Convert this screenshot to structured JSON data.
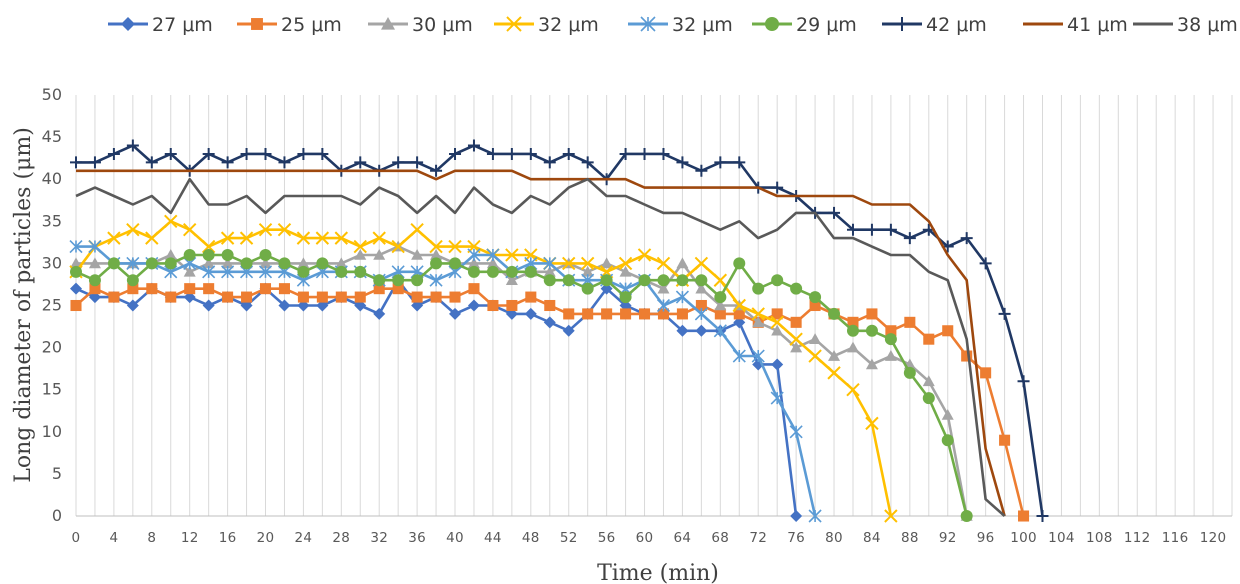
{
  "chart_data": {
    "type": "line",
    "xlabel": "Time (min)",
    "ylabel": "Long  diameter of particles (μm)",
    "ylim": [
      0,
      50
    ],
    "y_ticks": [
      0,
      5,
      10,
      15,
      20,
      25,
      30,
      35,
      40,
      45,
      50
    ],
    "x_ticks": [
      0,
      4,
      8,
      12,
      16,
      20,
      24,
      28,
      32,
      36,
      40,
      44,
      48,
      52,
      56,
      60,
      64,
      68,
      72,
      76,
      80,
      84,
      88,
      92,
      96,
      100,
      104,
      108,
      112,
      116,
      120
    ],
    "x_tick_labels": [
      "0",
      "4",
      "8",
      "12",
      "16",
      "20",
      "24",
      "28",
      "32",
      "36",
      "40",
      "44",
      "48",
      "52",
      "56",
      "60",
      "64",
      "68",
      "72",
      "76",
      "80",
      "84",
      "88",
      "92",
      "96",
      "100",
      "104",
      "108",
      "112",
      "116",
      "120"
    ],
    "xlim": [
      0,
      122
    ],
    "grid": "vertical",
    "legend_position": "top",
    "series": [
      {
        "name": "27 μm",
        "color": "#4472C4",
        "marker": "diamond",
        "x": [
          0,
          2,
          4,
          6,
          8,
          10,
          12,
          14,
          16,
          18,
          20,
          22,
          24,
          26,
          28,
          30,
          32,
          34,
          36,
          38,
          40,
          42,
          44,
          46,
          48,
          50,
          52,
          54,
          56,
          58,
          60,
          62,
          64,
          66,
          68,
          70,
          72,
          74,
          76
        ],
        "y": [
          27,
          26,
          26,
          25,
          27,
          26,
          26,
          25,
          26,
          25,
          27,
          25,
          25,
          25,
          26,
          25,
          24,
          28,
          25,
          26,
          24,
          25,
          25,
          24,
          24,
          23,
          22,
          24,
          27,
          25,
          24,
          24,
          22,
          22,
          22,
          23,
          18,
          18,
          0
        ]
      },
      {
        "name": "25 μm",
        "color": "#ED7D31",
        "marker": "square",
        "x": [
          0,
          2,
          4,
          6,
          8,
          10,
          12,
          14,
          16,
          18,
          20,
          22,
          24,
          26,
          28,
          30,
          32,
          34,
          36,
          38,
          40,
          42,
          44,
          46,
          48,
          50,
          52,
          54,
          56,
          58,
          60,
          62,
          64,
          66,
          68,
          70,
          72,
          74,
          76,
          78,
          80,
          82,
          84,
          86,
          88,
          90,
          92,
          94,
          96,
          98,
          100
        ],
        "y": [
          25,
          27,
          26,
          27,
          27,
          26,
          27,
          27,
          26,
          26,
          27,
          27,
          26,
          26,
          26,
          26,
          27,
          27,
          26,
          26,
          26,
          27,
          25,
          25,
          26,
          25,
          24,
          24,
          24,
          24,
          24,
          24,
          24,
          25,
          24,
          24,
          23,
          24,
          23,
          25,
          24,
          23,
          24,
          22,
          23,
          21,
          22,
          19,
          17,
          9,
          0
        ]
      },
      {
        "name": "30 μm",
        "color": "#A5A5A5",
        "marker": "triangle",
        "x": [
          0,
          2,
          4,
          6,
          8,
          10,
          12,
          14,
          16,
          18,
          20,
          22,
          24,
          26,
          28,
          30,
          32,
          34,
          36,
          38,
          40,
          42,
          44,
          46,
          48,
          50,
          52,
          54,
          56,
          58,
          60,
          62,
          64,
          66,
          68,
          70,
          72,
          74,
          76,
          78,
          80,
          82,
          84,
          86,
          88,
          90,
          92,
          94
        ],
        "y": [
          30,
          30,
          30,
          30,
          30,
          31,
          29,
          30,
          30,
          30,
          30,
          30,
          30,
          30,
          30,
          31,
          31,
          32,
          31,
          31,
          30,
          30,
          30,
          28,
          29,
          29,
          30,
          29,
          30,
          29,
          28,
          27,
          30,
          27,
          25,
          25,
          23,
          22,
          20,
          21,
          19,
          20,
          18,
          19,
          18,
          16,
          12,
          0
        ]
      },
      {
        "name": "32 μm",
        "color": "#FFC000",
        "marker": "x",
        "x": [
          0,
          2,
          4,
          6,
          8,
          10,
          12,
          14,
          16,
          18,
          20,
          22,
          24,
          26,
          28,
          30,
          32,
          34,
          36,
          38,
          40,
          42,
          44,
          46,
          48,
          50,
          52,
          54,
          56,
          58,
          60,
          62,
          64,
          66,
          68,
          70,
          72,
          74,
          76,
          78,
          80,
          82,
          84,
          86
        ],
        "y": [
          29,
          32,
          33,
          34,
          33,
          35,
          34,
          32,
          33,
          33,
          34,
          34,
          33,
          33,
          33,
          32,
          33,
          32,
          34,
          32,
          32,
          32,
          31,
          31,
          31,
          30,
          30,
          30,
          29,
          30,
          31,
          30,
          28,
          30,
          28,
          25,
          24,
          23,
          21,
          19,
          17,
          15,
          11,
          0
        ]
      },
      {
        "name": "32 μm",
        "color": "#5B9BD5",
        "marker": "asterisk",
        "x": [
          0,
          2,
          4,
          6,
          8,
          10,
          12,
          14,
          16,
          18,
          20,
          22,
          24,
          26,
          28,
          30,
          32,
          34,
          36,
          38,
          40,
          42,
          44,
          46,
          48,
          50,
          52,
          54,
          56,
          58,
          60,
          62,
          64,
          66,
          68,
          70,
          72,
          74,
          76,
          78
        ],
        "y": [
          32,
          32,
          30,
          30,
          30,
          29,
          30,
          29,
          29,
          29,
          29,
          29,
          28,
          29,
          29,
          29,
          28,
          29,
          29,
          28,
          29,
          31,
          31,
          29,
          30,
          30,
          28,
          28,
          28,
          27,
          28,
          25,
          26,
          24,
          22,
          19,
          19,
          14,
          10,
          0
        ]
      },
      {
        "name": "29 μm",
        "color": "#70AD47",
        "marker": "circle",
        "x": [
          0,
          2,
          4,
          6,
          8,
          10,
          12,
          14,
          16,
          18,
          20,
          22,
          24,
          26,
          28,
          30,
          32,
          34,
          36,
          38,
          40,
          42,
          44,
          46,
          48,
          50,
          52,
          54,
          56,
          58,
          60,
          62,
          64,
          66,
          68,
          70,
          72,
          74,
          76,
          78,
          80,
          82,
          84,
          86,
          88,
          90,
          92,
          94
        ],
        "y": [
          29,
          28,
          30,
          28,
          30,
          30,
          31,
          31,
          31,
          30,
          31,
          30,
          29,
          30,
          29,
          29,
          28,
          28,
          28,
          30,
          30,
          29,
          29,
          29,
          29,
          28,
          28,
          27,
          28,
          26,
          28,
          28,
          28,
          28,
          26,
          30,
          27,
          28,
          27,
          26,
          24,
          22,
          22,
          21,
          17,
          14,
          9,
          0
        ]
      },
      {
        "name": "42 μm",
        "color": "#203864",
        "marker": "plus",
        "x": [
          0,
          2,
          4,
          6,
          8,
          10,
          12,
          14,
          16,
          18,
          20,
          22,
          24,
          26,
          28,
          30,
          32,
          34,
          36,
          38,
          40,
          42,
          44,
          46,
          48,
          50,
          52,
          54,
          56,
          58,
          60,
          62,
          64,
          66,
          68,
          70,
          72,
          74,
          76,
          78,
          80,
          82,
          84,
          86,
          88,
          90,
          92,
          94,
          96,
          98,
          100,
          102
        ],
        "y": [
          42,
          42,
          43,
          44,
          42,
          43,
          41,
          43,
          42,
          43,
          43,
          42,
          43,
          43,
          41,
          42,
          41,
          42,
          42,
          41,
          43,
          44,
          43,
          43,
          43,
          42,
          43,
          42,
          40,
          43,
          43,
          43,
          42,
          41,
          42,
          42,
          39,
          39,
          38,
          36,
          36,
          34,
          34,
          34,
          33,
          34,
          32,
          33,
          30,
          24,
          16,
          0
        ]
      },
      {
        "name": "41 μm",
        "color": "#9E480E",
        "marker": "none",
        "x": [
          0,
          2,
          4,
          6,
          8,
          10,
          12,
          14,
          16,
          18,
          20,
          22,
          24,
          26,
          28,
          30,
          32,
          34,
          36,
          38,
          40,
          42,
          44,
          46,
          48,
          50,
          52,
          54,
          56,
          58,
          60,
          62,
          64,
          66,
          68,
          70,
          72,
          74,
          76,
          78,
          80,
          82,
          84,
          86,
          88,
          90,
          92,
          94,
          96,
          98
        ],
        "y": [
          41,
          41,
          41,
          41,
          41,
          41,
          41,
          41,
          41,
          41,
          41,
          41,
          41,
          41,
          41,
          41,
          41,
          41,
          41,
          40,
          41,
          41,
          41,
          41,
          40,
          40,
          40,
          40,
          40,
          40,
          39,
          39,
          39,
          39,
          39,
          39,
          39,
          38,
          38,
          38,
          38,
          38,
          37,
          37,
          37,
          35,
          31,
          28,
          8,
          0
        ]
      },
      {
        "name": "38 μm",
        "color": "#595959",
        "marker": "none",
        "x": [
          0,
          2,
          4,
          6,
          8,
          10,
          12,
          14,
          16,
          18,
          20,
          22,
          24,
          26,
          28,
          30,
          32,
          34,
          36,
          38,
          40,
          42,
          44,
          46,
          48,
          50,
          52,
          54,
          56,
          58,
          60,
          62,
          64,
          66,
          68,
          70,
          72,
          74,
          76,
          78,
          80,
          82,
          84,
          86,
          88,
          90,
          92,
          94,
          96,
          98
        ],
        "y": [
          38,
          39,
          38,
          37,
          38,
          36,
          40,
          37,
          37,
          38,
          36,
          38,
          38,
          38,
          38,
          37,
          39,
          38,
          36,
          38,
          36,
          39,
          37,
          36,
          38,
          37,
          39,
          40,
          38,
          38,
          37,
          36,
          36,
          35,
          34,
          35,
          33,
          34,
          36,
          36,
          33,
          33,
          32,
          31,
          31,
          29,
          28,
          21,
          2,
          0
        ]
      }
    ]
  }
}
